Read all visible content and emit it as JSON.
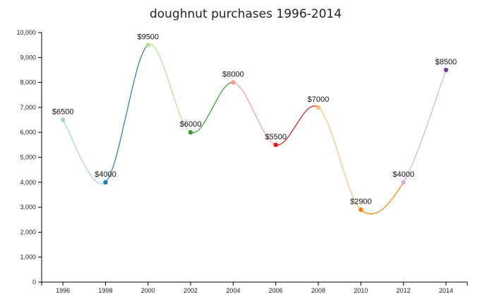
{
  "chart_data": {
    "type": "line",
    "title": "doughnut purchases 1996-2014",
    "xlabel": "",
    "ylabel": "",
    "x": [
      1996,
      1998,
      2000,
      2002,
      2004,
      2006,
      2008,
      2010,
      2012,
      2014
    ],
    "values": [
      6500,
      4000,
      9500,
      6000,
      8000,
      5500,
      7000,
      2900,
      4000,
      8500
    ],
    "point_labels": [
      "$6500",
      "$4000",
      "$9500",
      "$6000",
      "$8000",
      "$5500",
      "$7000",
      "$2900",
      "$4000",
      "$8500"
    ],
    "x_tick_labels": [
      "1996",
      "1998",
      "2000",
      "2002",
      "2004",
      "2006",
      "2008",
      "2010",
      "2012",
      "2014"
    ],
    "y_ticks": [
      0,
      1000,
      2000,
      3000,
      4000,
      5000,
      6000,
      7000,
      8000,
      9000,
      10000
    ],
    "y_tick_labels": [
      "0",
      "1,000",
      "2,000",
      "3,000",
      "4,000",
      "5,000",
      "6,000",
      "7,000",
      "8,000",
      "9,000",
      "10,000"
    ],
    "ylim": [
      0,
      10000
    ],
    "xlim": [
      1995,
      2015
    ],
    "grid": false,
    "curve": "smooth",
    "point_colors": [
      "#a6cee3",
      "#1f78b4",
      "#b2df8a",
      "#33a02c",
      "#fb9a99",
      "#e31a1c",
      "#fdbf6f",
      "#ff7f00",
      "#cab2d6",
      "#6a3d9a"
    ]
  }
}
